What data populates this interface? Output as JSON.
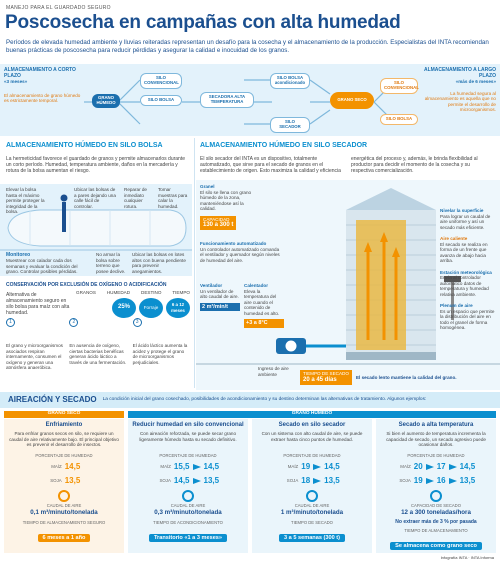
{
  "header": {
    "kicker": "MANEJO PARA EL GUARDADO SEGURO",
    "title": "Poscosecha en campañas con alta humedad",
    "intro": "Períodos de elevada humedad ambiente y lluvias reiteradas representan un desafío para la cosecha y el almacenamiento de la producción. Especialistas del INTA recomiendan buenas prácticas de poscosecha para reducir pérdidas y asegurar la calidad e inocuidad de los granos."
  },
  "flow": {
    "short_term": {
      "title": "ALMACENAMIENTO A CORTO PLAZO",
      "period": "«3 meses»",
      "text": "El almacenamiento de grano húmedo es estrictamente temporal."
    },
    "long_term": {
      "title": "ALMACENAMIENTO A LARGO PLAZO",
      "period": "«más de 6 meses»",
      "text": "La humedad segura al almacenamiento es aquella que no permite el desarrollo de microorganismos."
    },
    "nodes": [
      "GRANO HÚMEDO",
      "SILO CONVENCIONAL",
      "SILO BOLSA",
      "SECADORA ALTA TEMPERATURA",
      "SILO BOLSA acondicionado",
      "SILO SECADOR",
      "GRANO SECO",
      "SILO CONVENCIONAL",
      "SILO BOLSA"
    ]
  },
  "silo_bolsa": {
    "heading": "ALMACENAMIENTO HÚMEDO EN SILO BOLSA",
    "text": "La hermeticidad favorece el guardado de granos y permite almacenarlos durante un corto período. Humedad, temperatura ambiente, daños en la mercadería y rotura de la bolsa aumentan el riesgo.",
    "tips": [
      "Elevar la bolsa hasta el máximo permite proteger la integridad de la bolsa.",
      "Ubicar las bolsas de a pares dejando una calle fácil de controlar.",
      "Reparar de inmediato cualquier rotura.",
      "Tomar muestras para calar la humedad."
    ],
    "monitor_title": "Monitoreo",
    "monitor_text": "Muestrear con calador cada dos semanas y evaluar la condición del grano. Controlar posibles pérdidas.",
    "ground_tips": [
      "No armar la bolsa sobre terreno que posee declive.",
      "Ubicar las bolsas en lotes altos con buena pendiente para prevenir anegamientos."
    ],
    "conservation_title": "CONSERVACIÓN POR EXCLUSIÓN DE OXÍGENO O ACIDIFICACIÓN",
    "conservation_text": "Alternativa de almacenamiento seguro en silo bolsa para maíz con alta humedad.",
    "table_headers": [
      "GRANOS",
      "HUMEDAD",
      "DESTINO",
      "TIEMPO"
    ],
    "table_values": [
      "25%",
      "Forraje",
      "6 a 12 meses"
    ],
    "steps": [
      {
        "n": "1",
        "text": "El grano y microorganismos asociados respiran internamente, consumen el oxígeno y generan una atmósfera anaeróbica."
      },
      {
        "n": "2",
        "text": "En ausencia de oxígeno, ciertas bacterias benéficas generan ácido láctico a través de una fermentación."
      },
      {
        "n": "3",
        "text": "El ácido láctico aumenta la acidez y protege el grano de microorganismos perjudiciales."
      }
    ]
  },
  "silo_secador": {
    "heading": "ALMACENAMIENTO HÚMEDO EN SILO SECADOR",
    "text": "El silo secador del INTA es un dispositivo, totalmente automatizado, que sirve para el secado de granos en el establecimiento de origen. Esto maximiza la calidad y eficiencia energética del proceso y, además, le brinda flexibilidad al productor para decidir el momento de la cosecha y su respectiva comercialización.",
    "left_labels": [
      {
        "title": "Granel",
        "text": "El silo se llena con grano húmedo de la zona, manteniéndose así la calidad."
      },
      {
        "title": "Funcionamiento automatizado",
        "text": "Un controlador automatizado comanda el ventilador y quemador según niveles de humedad del aire."
      },
      {
        "title": "Ventilador",
        "text": "Un ventilador de alto caudal de aire."
      },
      {
        "title": "Calentador",
        "text": "Eleva la temperatura del aire cuando el contenido de humedad es alto."
      }
    ],
    "capacity_label": "CAPACIDAD",
    "capacity": "130 a 300 t",
    "airflow": "2 m³/min/t",
    "heat": "+3 a 8°C",
    "intake": "Ingreso de aire ambiente",
    "right_labels": [
      {
        "title": "Nivelar la superficie",
        "text": "Para lograr un caudal de aire uniforme y así un secado más eficiente."
      },
      {
        "title": "Aire caliente",
        "text": "El secado se realiza en forma de un frente que avanza de abajo hacia arriba."
      },
      {
        "title": "Estación meteorológica",
        "text": "Envía al controlador automático datos de temperatura y humedad relativa ambiente."
      },
      {
        "title": "Plenum de aire",
        "text": "Es un espacio que permite la distribución del aire en todo el granel de forma homogénea."
      }
    ],
    "time_label": "TIEMPO DE SECADO",
    "time": "20 a 45 días",
    "time_note": "El secado lento mantiene la calidad del grano."
  },
  "aireacion": {
    "heading": "AIREACIÓN Y SECADO",
    "subtitle": "La condición inicial del grano cosechado, posibilidades de acondicionamiento y su destino determinan las alternativas de tratamiento. Algunos ejemplos:",
    "group_dry": "GRANO SECO",
    "group_wet": "GRANO HÚMEDO",
    "cards": [
      {
        "title": "Enfriamiento",
        "text": "Para enfriar granos secos en silo, se requiere un caudal de aire relativamente bajo. El principal objetivo es prevenir el desarrollo de insectos.",
        "hum_label": "PORCENTAJE DE HUMEDAD",
        "rows": [
          {
            "crop": "MAÍZ",
            "values": [
              "14,5"
            ]
          },
          {
            "crop": "SOJA",
            "values": [
              "13,5"
            ]
          }
        ],
        "caudal_label": "CAUDAL DE AIRE",
        "caudal": "0,1 m³/minuto/tonelada",
        "time_label": "TIEMPO DE ALMACENAMIENTO SEGURO",
        "time": "6 meses a 1 año"
      },
      {
        "title": "Reducir humedad en silo convencional",
        "text": "Con aireación reforzada, se puede secar grano ligeramente húmedo hasta su secado definitivo.",
        "hum_label": "PORCENTAJE DE HUMEDAD",
        "rows": [
          {
            "crop": "MAÍZ",
            "values": [
              "15,5",
              "14,5"
            ]
          },
          {
            "crop": "SOJA",
            "values": [
              "14,5",
              "13,5"
            ]
          }
        ],
        "caudal_label": "CAUDAL DE AIRE",
        "caudal": "0,3 m³/minuto/tonelada",
        "time_label": "TIEMPO DE ACONDICIONAMIENTO",
        "time": "Transitorio «1 a 3 meses»"
      },
      {
        "title": "Secado en silo secador",
        "text": "Con un sistema con alto caudal de aire, se puede extraer hasta cinco puntos de humedad.",
        "hum_label": "PORCENTAJE DE HUMEDAD",
        "rows": [
          {
            "crop": "MAÍZ",
            "values": [
              "19",
              "14,5"
            ]
          },
          {
            "crop": "SOJA",
            "values": [
              "18",
              "13,5"
            ]
          }
        ],
        "caudal_label": "CAUDAL DE AIRE",
        "caudal": "1 m³/minuto/tonelada",
        "time_label": "TIEMPO DE SECADO",
        "time": "3 a 5 semanas (300 t)"
      },
      {
        "title": "Secado a alta temperatura",
        "text": "Si bien el aumento de temperatura incrementa la capacidad de secado, un secado agresivo puede ocasionar daños.",
        "hum_label": "PORCENTAJE DE HUMEDAD",
        "rows": [
          {
            "crop": "MAÍZ",
            "values": [
              "20",
              "17",
              "14,5"
            ]
          },
          {
            "crop": "SOJA",
            "values": [
              "19",
              "16",
              "13,5"
            ]
          }
        ],
        "caudal_label": "CAPACIDAD DE SECADO",
        "caudal": "12 a 300 toneladas/hora",
        "note": "No extraer más de 3 % por pasada",
        "time_label": "TIEMPO DE ALMACENAMIENTO",
        "time": "Se almacena como grano seco"
      }
    ]
  },
  "footer": {
    "credit": "Infografía INTA · INTA Informa"
  }
}
